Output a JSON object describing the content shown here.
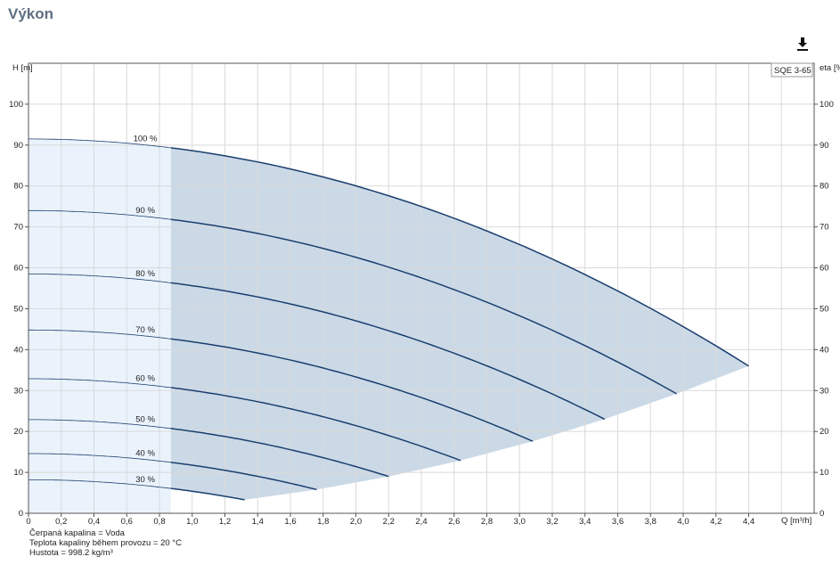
{
  "page": {
    "title": "Výkon"
  },
  "toolbar": {
    "download_icon": "download-icon"
  },
  "legend": {
    "model": "SQE 3-65"
  },
  "footnotes": {
    "liquid": "Čerpaná kapalina = Voda",
    "temperature": "Teplota kapaliny během provozu = 20 °C",
    "density": "Hustota = 998.2 kg/m³"
  },
  "colors": {
    "curve": "#1a3f6e",
    "region_light": "#eaf3fc",
    "region_dark": "#cbd9e7",
    "grid": "#d9d9d9"
  },
  "chart_data": {
    "type": "line",
    "title": "",
    "xlabel": "Q [m³/h]",
    "ylabel_left": "H [m]",
    "ylabel_right": "eta [%]",
    "xlim": [
      0,
      4.8
    ],
    "ylim": [
      0,
      110
    ],
    "x_ticks": [
      "0",
      "0,2",
      "0,4",
      "0,6",
      "0,8",
      "1,0",
      "1,2",
      "1,4",
      "1,6",
      "1,8",
      "2,0",
      "2,2",
      "2,4",
      "2,6",
      "2,8",
      "3,0",
      "3,2",
      "3,4",
      "3,6",
      "3,8",
      "4,0",
      "4,2",
      "4,4"
    ],
    "y_ticks": [
      "0",
      "10",
      "20",
      "30",
      "40",
      "50",
      "60",
      "70",
      "80",
      "90",
      "100"
    ],
    "grid": true,
    "legend_position": "top-right",
    "allowed_range_start_q": 0.87,
    "series": [
      {
        "name": "100 %",
        "h0": 91.5,
        "q_end": 4.4,
        "h_end": 36
      },
      {
        "name": "90 %",
        "h0": 74.0,
        "q_end": 3.96,
        "h_end": 29.2
      },
      {
        "name": "80 %",
        "h0": 58.5,
        "q_end": 3.52,
        "h_end": 23.0
      },
      {
        "name": "70 %",
        "h0": 44.8,
        "q_end": 3.08,
        "h_end": 17.6
      },
      {
        "name": "60 %",
        "h0": 32.9,
        "q_end": 2.64,
        "h_end": 12.9
      },
      {
        "name": "50 %",
        "h0": 22.9,
        "q_end": 2.2,
        "h_end": 9.0
      },
      {
        "name": "40 %",
        "h0": 14.6,
        "q_end": 1.76,
        "h_end": 5.8
      },
      {
        "name": "30 %",
        "h0": 8.2,
        "q_end": 1.32,
        "h_end": 3.3
      }
    ]
  }
}
